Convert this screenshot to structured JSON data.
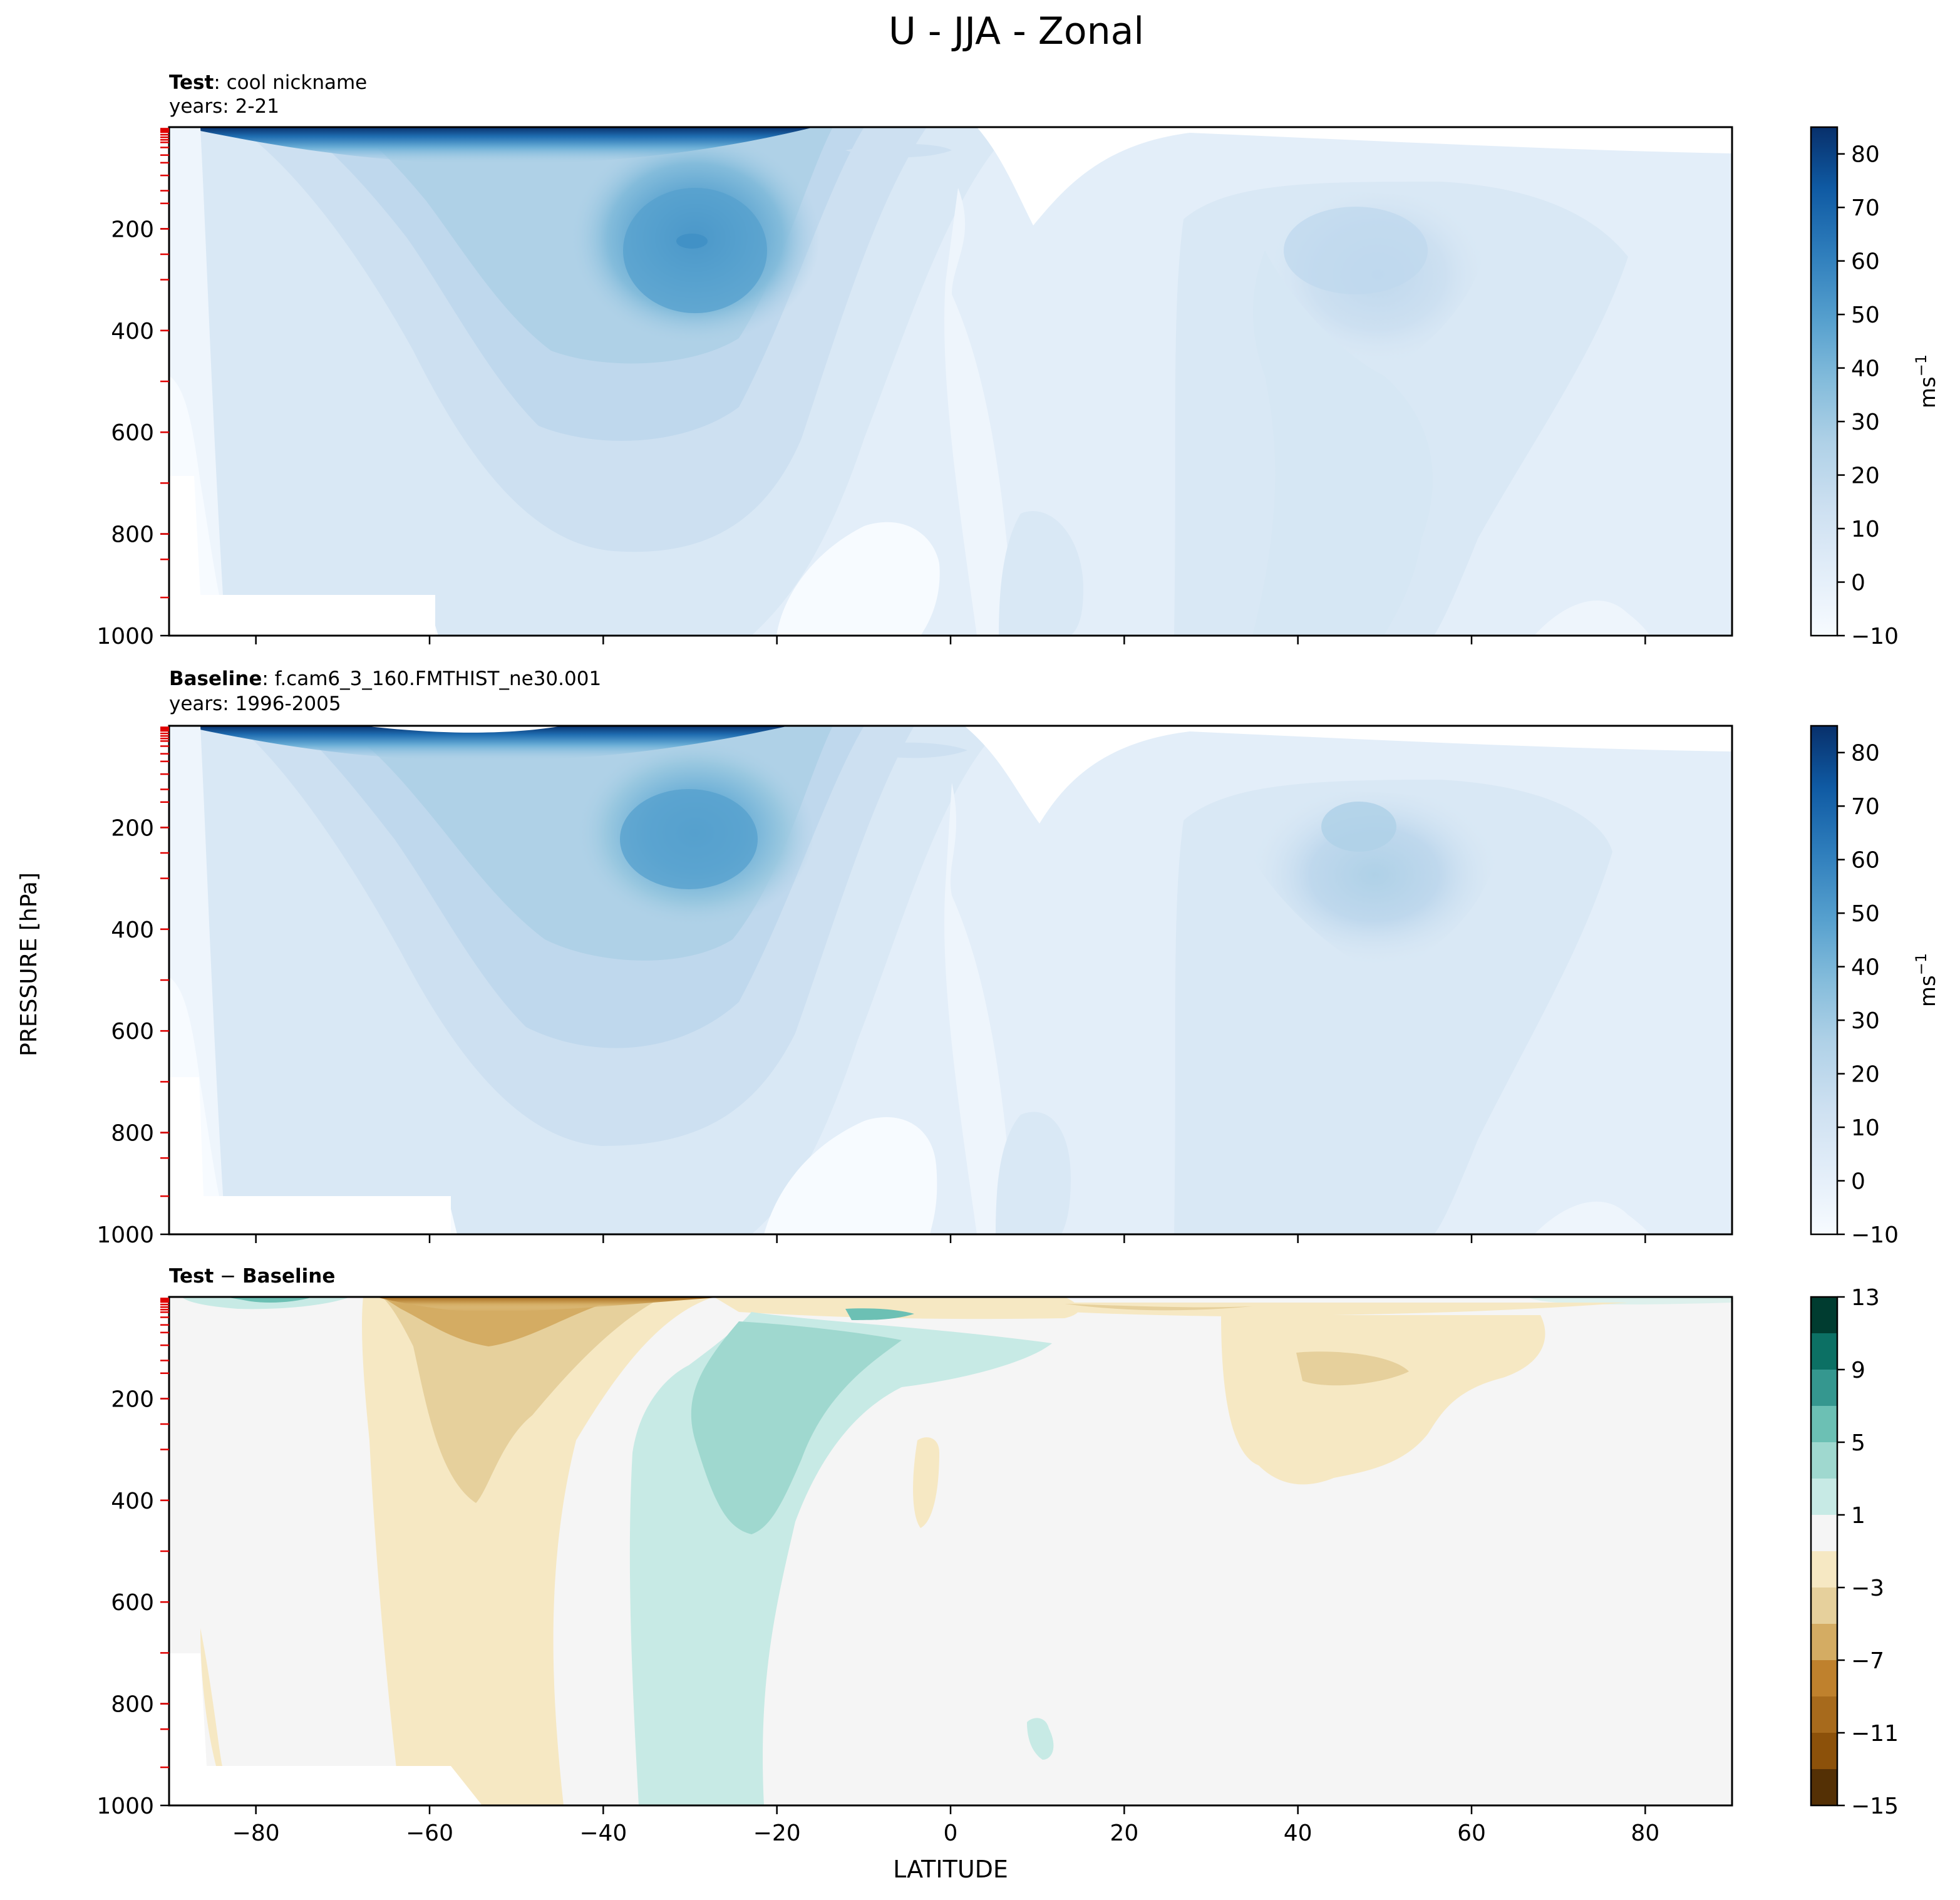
{
  "figure": {
    "title": "U - JJA - Zonal",
    "ylabel": "PRESSURE [hPa]",
    "xlabel": "LATITUDE"
  },
  "chart_data": [
    {
      "type": "heatmap",
      "panel": "test",
      "label_bold": "Test",
      "label_rest": ": cool nickname",
      "years": "years: 2-21",
      "xlim": [
        -90,
        90
      ],
      "ylim": [
        1000,
        0
      ],
      "x_ticks": [
        -80,
        -60,
        -40,
        -20,
        0,
        20,
        40,
        60,
        80
      ],
      "y_ticks": [
        "200",
        "400",
        "600",
        "800",
        "1000"
      ],
      "y_tick_values": [
        200,
        400,
        600,
        800,
        1000
      ],
      "colorbar": {
        "ticks": [
          "80",
          "70",
          "60",
          "50",
          "40",
          "30",
          "20",
          "10",
          "0",
          "−10"
        ],
        "tick_values": [
          80,
          70,
          60,
          50,
          40,
          30,
          20,
          10,
          0,
          -10
        ],
        "range": [
          -10,
          85
        ],
        "label": "ms",
        "label_exp": "−1",
        "colors": [
          "#f7fbff",
          "#eef5fc",
          "#e3eef9",
          "#d9e8f5",
          "#cde0f1",
          "#bfd8ed",
          "#afd1e7",
          "#9ac8e0",
          "#84bcdb",
          "#6aaed6",
          "#56a0ce",
          "#4191c6",
          "#2f7ebc",
          "#1f6db1",
          "#0f5aa3",
          "#08468b",
          "#08306b"
        ]
      },
      "features": [
        {
          "name": "SH upper jet",
          "lat": -55,
          "p": 15,
          "u": 84
        },
        {
          "name": "SH subtropical jet",
          "lat": -30,
          "p": 200,
          "u": 45
        },
        {
          "name": "NH jet",
          "lat": 45,
          "p": 200,
          "u": 22
        },
        {
          "name": "easterlies",
          "lat": 5,
          "p": 40,
          "u": -5
        }
      ]
    },
    {
      "type": "heatmap",
      "panel": "baseline",
      "label_bold": "Baseline",
      "label_rest": ": f.cam6_3_160.FMTHIST_ne30.001",
      "years": "years: 1996-2005",
      "xlim": [
        -90,
        90
      ],
      "ylim": [
        1000,
        0
      ],
      "x_ticks": [
        -80,
        -60,
        -40,
        -20,
        0,
        20,
        40,
        60,
        80
      ],
      "y_ticks": [
        "200",
        "400",
        "600",
        "800",
        "1000"
      ],
      "y_tick_values": [
        200,
        400,
        600,
        800,
        1000
      ],
      "colorbar": {
        "ticks": [
          "80",
          "70",
          "60",
          "50",
          "40",
          "30",
          "20",
          "10",
          "0",
          "−10"
        ],
        "tick_values": [
          80,
          70,
          60,
          50,
          40,
          30,
          20,
          10,
          0,
          -10
        ],
        "range": [
          -10,
          85
        ],
        "label": "ms",
        "label_exp": "−1",
        "colors": [
          "#f7fbff",
          "#eef5fc",
          "#e3eef9",
          "#d9e8f5",
          "#cde0f1",
          "#bfd8ed",
          "#afd1e7",
          "#9ac8e0",
          "#84bcdb",
          "#6aaed6",
          "#56a0ce",
          "#4191c6",
          "#2f7ebc",
          "#1f6db1",
          "#0f5aa3",
          "#08468b",
          "#08306b"
        ]
      },
      "features": [
        {
          "name": "SH upper jet",
          "lat": -55,
          "p": 10,
          "u": 85
        },
        {
          "name": "SH subtropical jet",
          "lat": -30,
          "p": 200,
          "u": 42
        },
        {
          "name": "NH jet",
          "lat": 45,
          "p": 200,
          "u": 28
        },
        {
          "name": "easterlies",
          "lat": 5,
          "p": 40,
          "u": -5
        }
      ]
    },
    {
      "type": "heatmap",
      "panel": "difference",
      "label_bold": "Test",
      "label_mid": " − ",
      "label_bold2": "Baseline",
      "xlim": [
        -90,
        90
      ],
      "ylim": [
        1000,
        0
      ],
      "x_ticks": [
        -80,
        -60,
        -40,
        -20,
        0,
        20,
        40,
        60,
        80
      ],
      "x_tick_labels": [
        "−80",
        "−60",
        "−40",
        "−20",
        "0",
        "20",
        "40",
        "60",
        "80"
      ],
      "y_ticks": [
        "200",
        "400",
        "600",
        "800",
        "1000"
      ],
      "y_tick_values": [
        200,
        400,
        600,
        800,
        1000
      ],
      "colorbar": {
        "ticks": [
          "13",
          "9",
          "5",
          "1",
          "−3",
          "−7",
          "−11",
          "−15"
        ],
        "tick_values": [
          13,
          9,
          5,
          1,
          -3,
          -7,
          -11,
          -15
        ],
        "range": [
          -15,
          13
        ],
        "levels": [
          -15,
          -13,
          -11,
          -9,
          -7,
          -5,
          -3,
          -1,
          1,
          3,
          5,
          7,
          9,
          11,
          13
        ],
        "colors": [
          "#543005",
          "#8c510a",
          "#a76a1c",
          "#bf812d",
          "#d4ac63",
          "#e6d09c",
          "#f6e8c3",
          "#f5f5f5",
          "#c7eae5",
          "#9fd8cf",
          "#6cc0b4",
          "#35978f",
          "#0c7064",
          "#003c30"
        ]
      },
      "features": [
        {
          "name": "SH high-lat easterly diff",
          "lat": -55,
          "p": 20,
          "u": -9
        },
        {
          "name": "SH midlat negative",
          "lat": -55,
          "p": 250,
          "u": -3
        },
        {
          "name": "subtropical positive",
          "lat": -25,
          "p": 250,
          "u": 3
        },
        {
          "name": "tropical upper positive",
          "lat": -8,
          "p": 40,
          "u": 6
        },
        {
          "name": "NH negative",
          "lat": 45,
          "p": 100,
          "u": -3
        }
      ]
    }
  ]
}
